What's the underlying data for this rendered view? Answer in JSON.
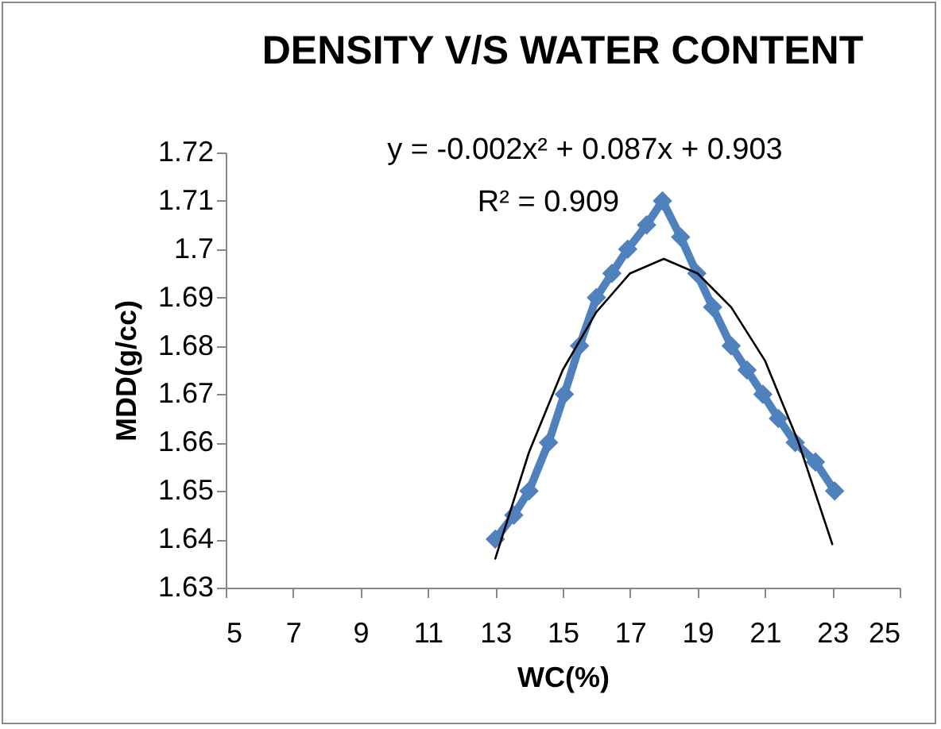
{
  "chart_data": {
    "type": "line",
    "title": "DENSITY V/S WATER CONTENT",
    "xlabel": "WC(%)",
    "ylabel": "MDD(g/cc)",
    "annotations": [
      "y = -0.002x² + 0.087x + 0.903",
      "R² = 0.909"
    ],
    "xlim": [
      5,
      25
    ],
    "xticks": [
      5,
      7,
      9,
      11,
      13,
      15,
      17,
      19,
      21,
      23,
      25
    ],
    "ylim": [
      1.63,
      1.72
    ],
    "yticks": [
      1.63,
      1.64,
      1.65,
      1.66,
      1.67,
      1.68,
      1.69,
      1.7,
      1.71,
      1.72
    ],
    "grid": false,
    "marker": "diamond",
    "line_style": "solid",
    "series": [
      {
        "color": "#4f81bd",
        "x": [
          13,
          13.55,
          14,
          14.58,
          15.05,
          15.5,
          16,
          16.46,
          16.93,
          17.49,
          17.96,
          18.5,
          18.98,
          19.45,
          20,
          20.47,
          20.94,
          21.4,
          21.9,
          22.5,
          23.07
        ],
        "values": [
          1.64,
          1.645,
          1.65,
          1.66,
          1.67,
          1.68,
          1.69,
          1.695,
          1.7,
          1.705,
          1.71,
          1.7025,
          1.695,
          1.688,
          1.68,
          1.675,
          1.67,
          1.665,
          1.66,
          1.656,
          1.65
        ]
      },
      {
        "type": "line",
        "color": "#000000",
        "marker": "none",
        "x": [
          13,
          14,
          15,
          16,
          17,
          18,
          19,
          20,
          21,
          22,
          23
        ],
        "values": [
          1.636,
          1.658,
          1.675,
          1.687,
          1.695,
          1.698,
          1.695,
          1.688,
          1.677,
          1.66,
          1.639
        ]
      }
    ]
  }
}
